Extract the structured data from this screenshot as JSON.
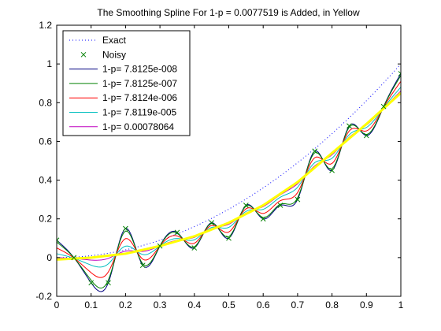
{
  "chart_data": {
    "type": "line",
    "title": "The Smoothing Spline For 1-p = 0.0077519 is Added, in Yellow",
    "xlabel": "",
    "ylabel": "",
    "xlim": [
      0,
      1
    ],
    "ylim": [
      -0.2,
      1.2
    ],
    "xticks": [
      "0",
      "0.1",
      "0.2",
      "0.3",
      "0.4",
      "0.5",
      "0.6",
      "0.7",
      "0.8",
      "0.9",
      "1"
    ],
    "yticks": [
      "-0.2",
      "0",
      "0.2",
      "0.4",
      "0.6",
      "0.8",
      "1",
      "1.2"
    ],
    "grid": false,
    "legend_position": "top-left",
    "noisy_x": [
      0,
      0.05,
      0.1,
      0.15,
      0.2,
      0.25,
      0.3,
      0.35,
      0.4,
      0.45,
      0.5,
      0.55,
      0.6,
      0.65,
      0.7,
      0.75,
      0.8,
      0.85,
      0.9,
      0.95,
      1.0
    ],
    "noisy_y": [
      0.09,
      0.0,
      -0.13,
      -0.13,
      0.15,
      -0.04,
      0.06,
      0.13,
      0.05,
      0.18,
      0.1,
      0.27,
      0.2,
      0.27,
      0.3,
      0.55,
      0.45,
      0.68,
      0.63,
      0.78,
      0.95
    ],
    "series": [
      {
        "name": "Exact",
        "style": "dotted",
        "color": "#0000ff",
        "function": "x^2"
      },
      {
        "name": "Noisy",
        "style": "marker-x",
        "color": "#008000"
      },
      {
        "name": "1-p= 7.8125e-008",
        "style": "solid",
        "color": "#000080",
        "smoothing_weight": 1.0
      },
      {
        "name": "1-p= 7.8125e-007",
        "style": "solid",
        "color": "#008000",
        "smoothing_weight": 0.9
      },
      {
        "name": "1-p= 7.8124e-006",
        "style": "solid",
        "color": "#ff0000",
        "smoothing_weight": 0.6
      },
      {
        "name": "1-p= 7.8119e-005",
        "style": "solid",
        "color": "#00bfbf",
        "smoothing_weight": 0.3
      },
      {
        "name": "1-p= 0.00078064",
        "style": "solid",
        "color": "#bf00bf",
        "smoothing_weight": 0.1
      }
    ],
    "yellow_spline": {
      "color": "#ffff00",
      "x": [
        0,
        0.1,
        0.2,
        0.3,
        0.4,
        0.5,
        0.6,
        0.7,
        0.8,
        0.9,
        1.0
      ],
      "y": [
        -0.01,
        0.0,
        0.02,
        0.06,
        0.11,
        0.18,
        0.27,
        0.39,
        0.54,
        0.69,
        0.85
      ]
    }
  }
}
